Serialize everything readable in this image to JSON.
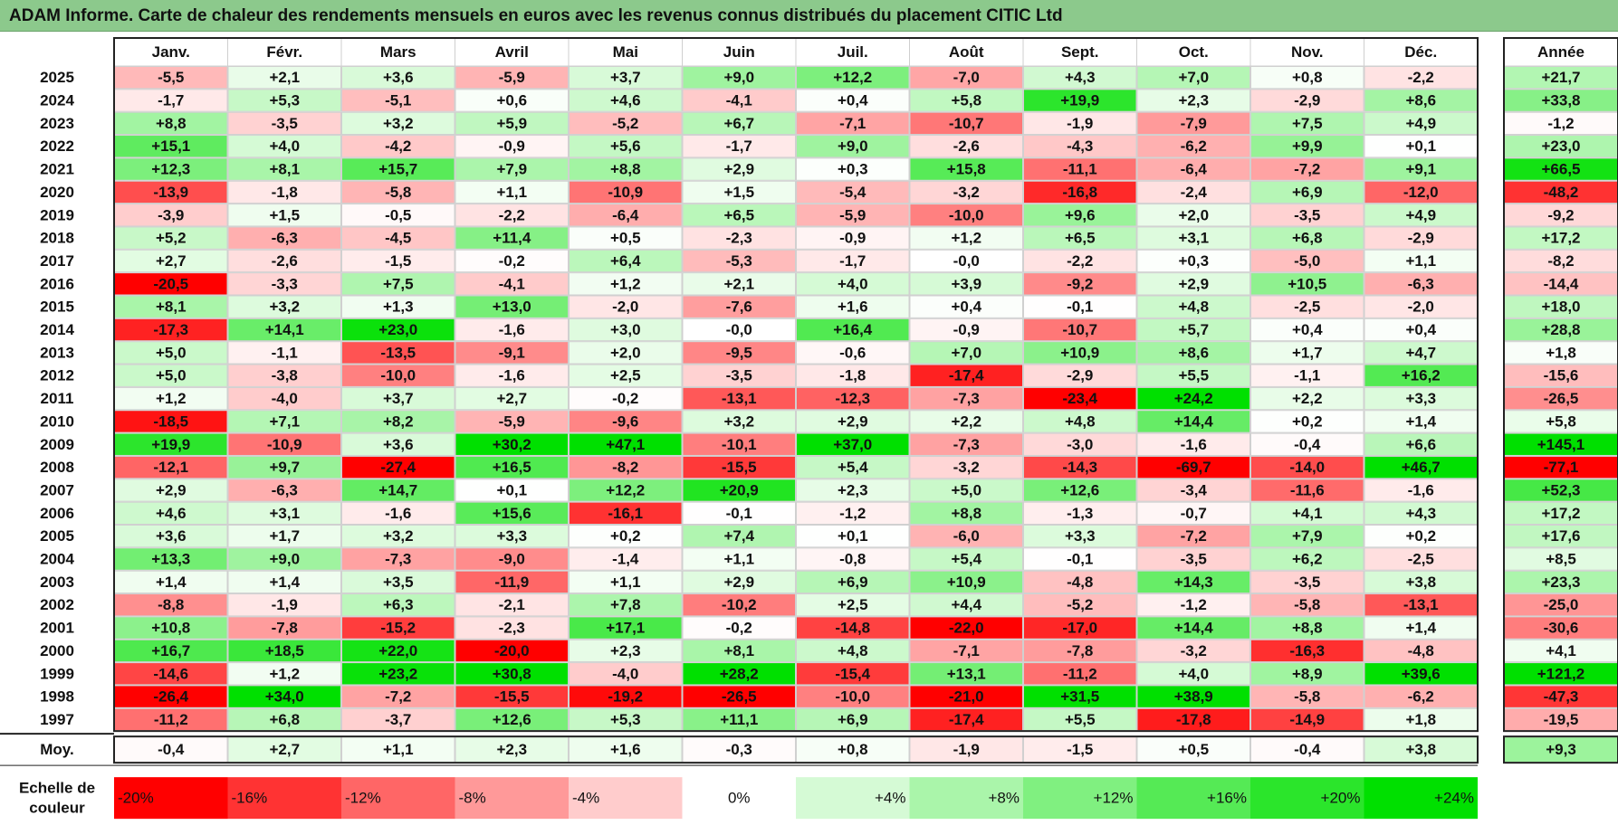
{
  "title": "ADAM Informe. Carte de chaleur des rendements mensuels en euros avec les revenus connus distribués du placement CITIC Ltd",
  "chart_data": {
    "type": "heatmap",
    "months": [
      "Janv.",
      "Févr.",
      "Mars",
      "Avril",
      "Mai",
      "Juin",
      "Juil.",
      "Août",
      "Sept.",
      "Oct.",
      "Nov.",
      "Déc."
    ],
    "annual_header": "Année",
    "rows": [
      {
        "year": "2025",
        "values": [
          "-5,5",
          "+2,1",
          "+3,6",
          "-5,9",
          "+3,7",
          "+9,0",
          "+12,2",
          "-7,0",
          "+4,3",
          "+7,0",
          "+0,8",
          "-2,2"
        ],
        "annual": "+21,7"
      },
      {
        "year": "2024",
        "values": [
          "-1,7",
          "+5,3",
          "-5,1",
          "+0,6",
          "+4,6",
          "-4,1",
          "+0,4",
          "+5,8",
          "+19,9",
          "+2,3",
          "-2,9",
          "+8,6"
        ],
        "annual": "+33,8"
      },
      {
        "year": "2023",
        "values": [
          "+8,8",
          "-3,5",
          "+3,2",
          "+5,9",
          "-5,2",
          "+6,7",
          "-7,1",
          "-10,7",
          "-1,9",
          "-7,9",
          "+7,5",
          "+4,9"
        ],
        "annual": "-1,2"
      },
      {
        "year": "2022",
        "values": [
          "+15,1",
          "+4,0",
          "-4,2",
          "-0,9",
          "+5,6",
          "-1,7",
          "+9,0",
          "-2,6",
          "-4,3",
          "-6,2",
          "+9,9",
          "+0,1"
        ],
        "annual": "+23,0"
      },
      {
        "year": "2021",
        "values": [
          "+12,3",
          "+8,1",
          "+15,7",
          "+7,9",
          "+8,8",
          "+2,9",
          "+0,3",
          "+15,8",
          "-11,1",
          "-6,4",
          "-7,2",
          "+9,1"
        ],
        "annual": "+66,5"
      },
      {
        "year": "2020",
        "values": [
          "-13,9",
          "-1,8",
          "-5,8",
          "+1,1",
          "-10,9",
          "+1,5",
          "-5,4",
          "-3,2",
          "-16,8",
          "-2,4",
          "+6,9",
          "-12,0"
        ],
        "annual": "-48,2"
      },
      {
        "year": "2019",
        "values": [
          "-3,9",
          "+1,5",
          "-0,5",
          "-2,2",
          "-6,4",
          "+6,5",
          "-5,9",
          "-10,0",
          "+9,6",
          "+2,0",
          "-3,5",
          "+4,9"
        ],
        "annual": "-9,2"
      },
      {
        "year": "2018",
        "values": [
          "+5,2",
          "-6,3",
          "-4,5",
          "+11,4",
          "+0,5",
          "-2,3",
          "-0,9",
          "+1,2",
          "+6,5",
          "+3,1",
          "+6,8",
          "-2,9"
        ],
        "annual": "+17,2"
      },
      {
        "year": "2017",
        "values": [
          "+2,7",
          "-2,6",
          "-1,5",
          "-0,2",
          "+6,4",
          "-5,3",
          "-1,7",
          "-0,0",
          "-2,2",
          "+0,3",
          "-5,0",
          "+1,1"
        ],
        "annual": "-8,2"
      },
      {
        "year": "2016",
        "values": [
          "-20,5",
          "-3,3",
          "+7,5",
          "-4,1",
          "+1,2",
          "+2,1",
          "+4,0",
          "+3,9",
          "-9,2",
          "+2,9",
          "+10,5",
          "-6,3"
        ],
        "annual": "-14,4"
      },
      {
        "year": "2015",
        "values": [
          "+8,1",
          "+3,2",
          "+1,3",
          "+13,0",
          "-2,0",
          "-7,6",
          "+1,6",
          "+0,4",
          "-0,1",
          "+4,8",
          "-2,5",
          "-2,0"
        ],
        "annual": "+18,0"
      },
      {
        "year": "2014",
        "values": [
          "-17,3",
          "+14,1",
          "+23,0",
          "-1,6",
          "+3,0",
          "-0,0",
          "+16,4",
          "-0,9",
          "-10,7",
          "+5,7",
          "+0,4",
          "+0,4"
        ],
        "annual": "+28,8"
      },
      {
        "year": "2013",
        "values": [
          "+5,0",
          "-1,1",
          "-13,5",
          "-9,1",
          "+2,0",
          "-9,5",
          "-0,6",
          "+7,0",
          "+10,9",
          "+8,6",
          "+1,7",
          "+4,7"
        ],
        "annual": "+1,8"
      },
      {
        "year": "2012",
        "values": [
          "+5,0",
          "-3,8",
          "-10,0",
          "-1,6",
          "+2,5",
          "-3,5",
          "-1,8",
          "-17,4",
          "-2,9",
          "+5,5",
          "-1,1",
          "+16,2"
        ],
        "annual": "-15,6"
      },
      {
        "year": "2011",
        "values": [
          "+1,2",
          "-4,0",
          "+3,7",
          "+2,7",
          "-0,2",
          "-13,1",
          "-12,3",
          "-7,3",
          "-23,4",
          "+24,2",
          "+2,2",
          "+3,3"
        ],
        "annual": "-26,5"
      },
      {
        "year": "2010",
        "values": [
          "-18,5",
          "+7,1",
          "+8,2",
          "-5,9",
          "-9,6",
          "+3,2",
          "+2,9",
          "+2,2",
          "+4,8",
          "+14,4",
          "+0,2",
          "+1,4"
        ],
        "annual": "+5,8"
      },
      {
        "year": "2009",
        "values": [
          "+19,9",
          "-10,9",
          "+3,6",
          "+30,2",
          "+47,1",
          "-10,1",
          "+37,0",
          "-7,3",
          "-3,0",
          "-1,6",
          "-0,4",
          "+6,6"
        ],
        "annual": "+145,1"
      },
      {
        "year": "2008",
        "values": [
          "-12,1",
          "+9,7",
          "-27,4",
          "+16,5",
          "-8,2",
          "-15,5",
          "+5,4",
          "-3,2",
          "-14,3",
          "-69,7",
          "-14,0",
          "+46,7"
        ],
        "annual": "-77,1"
      },
      {
        "year": "2007",
        "values": [
          "+2,9",
          "-6,3",
          "+14,7",
          "+0,1",
          "+12,2",
          "+20,9",
          "+2,3",
          "+5,0",
          "+12,6",
          "-3,4",
          "-11,6",
          "-1,6"
        ],
        "annual": "+52,3"
      },
      {
        "year": "2006",
        "values": [
          "+4,6",
          "+3,1",
          "-1,6",
          "+15,6",
          "-16,1",
          "-0,1",
          "-1,2",
          "+8,8",
          "-1,3",
          "-0,7",
          "+4,1",
          "+4,3"
        ],
        "annual": "+17,2"
      },
      {
        "year": "2005",
        "values": [
          "+3,6",
          "+1,7",
          "+3,2",
          "+3,3",
          "+0,2",
          "+7,4",
          "+0,1",
          "-6,0",
          "+3,3",
          "-7,2",
          "+7,9",
          "+0,2"
        ],
        "annual": "+17,6"
      },
      {
        "year": "2004",
        "values": [
          "+13,3",
          "+9,0",
          "-7,3",
          "-9,0",
          "-1,4",
          "+1,1",
          "-0,8",
          "+5,4",
          "-0,1",
          "-3,5",
          "+6,2",
          "-2,5"
        ],
        "annual": "+8,5"
      },
      {
        "year": "2003",
        "values": [
          "+1,4",
          "+1,4",
          "+3,5",
          "-11,9",
          "+1,1",
          "+2,9",
          "+6,9",
          "+10,9",
          "-4,8",
          "+14,3",
          "-3,5",
          "+3,8"
        ],
        "annual": "+23,3"
      },
      {
        "year": "2002",
        "values": [
          "-8,8",
          "-1,9",
          "+6,3",
          "-2,1",
          "+7,8",
          "-10,2",
          "+2,5",
          "+4,4",
          "-5,2",
          "-1,2",
          "-5,8",
          "-13,1"
        ],
        "annual": "-25,0"
      },
      {
        "year": "2001",
        "values": [
          "+10,8",
          "-7,8",
          "-15,2",
          "-2,3",
          "+17,1",
          "-0,2",
          "-14,8",
          "-22,0",
          "-17,0",
          "+14,4",
          "+8,8",
          "+1,4"
        ],
        "annual": "-30,6"
      },
      {
        "year": "2000",
        "values": [
          "+16,7",
          "+18,5",
          "+22,0",
          "-20,0",
          "+2,3",
          "+8,1",
          "+4,8",
          "-7,1",
          "-7,8",
          "-3,2",
          "-16,3",
          "-4,8"
        ],
        "annual": "+4,1"
      },
      {
        "year": "1999",
        "values": [
          "-14,6",
          "+1,2",
          "+23,2",
          "+30,8",
          "-4,0",
          "+28,2",
          "-15,4",
          "+13,1",
          "-11,2",
          "+4,0",
          "+8,9",
          "+39,6"
        ],
        "annual": "+121,2"
      },
      {
        "year": "1998",
        "values": [
          "-26,4",
          "+34,0",
          "-7,2",
          "-15,5",
          "-19,2",
          "-26,5",
          "-10,0",
          "-21,0",
          "+31,5",
          "+38,9",
          "-5,8",
          "-6,2"
        ],
        "annual": "-47,3"
      },
      {
        "year": "1997",
        "values": [
          "-11,2",
          "+6,8",
          "-3,7",
          "+12,6",
          "+5,3",
          "+11,1",
          "+6,9",
          "-17,4",
          "+5,5",
          "-17,8",
          "-14,9",
          "+1,8"
        ],
        "annual": "-19,5"
      }
    ],
    "average": {
      "label": "Moy.",
      "values": [
        "-0,4",
        "+2,7",
        "+1,1",
        "+2,3",
        "+1,6",
        "-0,3",
        "+0,8",
        "-1,9",
        "-1,5",
        "+0,5",
        "-0,4",
        "+3,8"
      ],
      "annual": "+9,3"
    },
    "scale": {
      "label_line1": "Echelle de",
      "label_line2": "couleur",
      "steps": [
        "-20%",
        "-16%",
        "-12%",
        "-8%",
        "-4%",
        "0%",
        "+4%",
        "+8%",
        "+12%",
        "+16%",
        "+20%",
        "+24%"
      ],
      "step_values": [
        -20,
        -16,
        -12,
        -8,
        -4,
        0,
        4,
        8,
        12,
        16,
        20,
        24
      ]
    },
    "colors": {
      "neg_max": "#ff0000",
      "zero": "#ffffff",
      "pos_max": "#00e000",
      "title_bg": "#8cc98c"
    }
  }
}
